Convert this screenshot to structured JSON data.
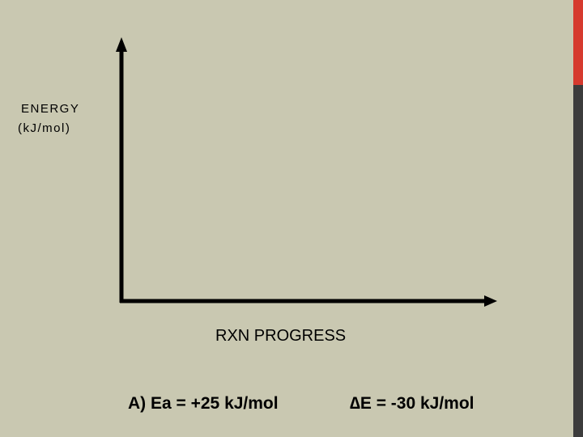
{
  "axes": {
    "y_label": [
      "ENERGY",
      "(kJ/mol)"
    ],
    "x_label": "RXN PROGRESS"
  },
  "question": {
    "activation_energy": "A) Ea = +25 kJ/mol",
    "energy_change": "∆E = -30 kJ/mol"
  }
}
